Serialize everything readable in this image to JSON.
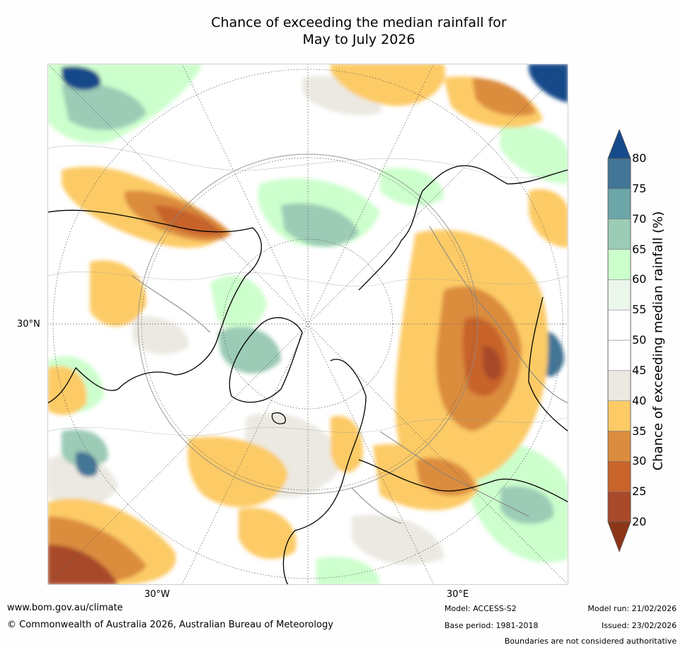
{
  "title": {
    "line1": "Chance of exceeding the median rainfall for",
    "line2": "May to July 2026"
  },
  "map": {
    "projection": "north-polar-stereographic",
    "lat_label_left": "30°N",
    "lon_label_bottom_left": "30°W",
    "lon_label_bottom_right": "30°E",
    "land_outline_color": "#000000",
    "border_color": "#808080"
  },
  "colorbar": {
    "label": "Chance of exceeding median rainfall (%)",
    "ticks": [
      "20",
      "25",
      "30",
      "35",
      "40",
      "45",
      "50",
      "55",
      "60",
      "65",
      "70",
      "75",
      "80"
    ],
    "colors": [
      "#a84a2a",
      "#c8642c",
      "#dc8c3e",
      "#fccb66",
      "#ebe9e2",
      "#ffffff",
      "#ffffff",
      "#ecf7ec",
      "#ccffcc",
      "#9ccbb6",
      "#6ca6a8",
      "#427596"
    ],
    "under_color": "#8c3518",
    "over_color": "#164a8a"
  },
  "footer": {
    "website": "www.bom.gov.au/climate",
    "copyright": "© Commonwealth of Australia 2026, Australian Bureau of Meteorology",
    "model": "Model: ACCESS-S2",
    "base_period": "Base period: 1981-2018",
    "model_run": "Model run: 21/02/2026",
    "issued": "Issued: 23/02/2026",
    "disclaimer": "Boundaries are not considered authoritative"
  }
}
